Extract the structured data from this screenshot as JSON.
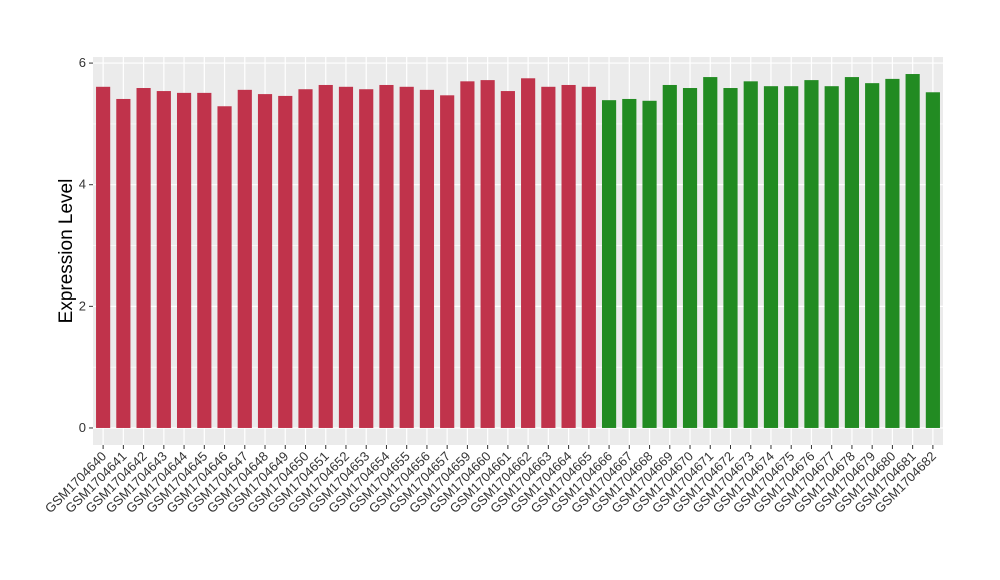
{
  "chart_data": {
    "type": "bar",
    "y_label": "Expression Level",
    "categories": [
      "GSM1704640",
      "GSM1704641",
      "GSM1704642",
      "GSM1704643",
      "GSM1704644",
      "GSM1704645",
      "GSM1704646",
      "GSM1704647",
      "GSM1704648",
      "GSM1704649",
      "GSM1704650",
      "GSM1704651",
      "GSM1704652",
      "GSM1704653",
      "GSM1704654",
      "GSM1704655",
      "GSM1704656",
      "GSM1704657",
      "GSM1704659",
      "GSM1704660",
      "GSM1704661",
      "GSM1704662",
      "GSM1704663",
      "GSM1704664",
      "GSM1704665",
      "GSM1704666",
      "GSM1704667",
      "GSM1704668",
      "GSM1704669",
      "GSM1704670",
      "GSM1704671",
      "GSM1704672",
      "GSM1704673",
      "GSM1704674",
      "GSM1704675",
      "GSM1704676",
      "GSM1704677",
      "GSM1704678",
      "GSM1704679",
      "GSM1704680",
      "GSM1704681",
      "GSM1704682"
    ],
    "values": [
      5.61,
      5.41,
      5.59,
      5.54,
      5.51,
      5.51,
      5.29,
      5.56,
      5.49,
      5.46,
      5.57,
      5.64,
      5.61,
      5.57,
      5.64,
      5.61,
      5.56,
      5.47,
      5.7,
      5.72,
      5.54,
      5.75,
      5.61,
      5.64,
      5.61,
      5.39,
      5.41,
      5.38,
      5.64,
      5.59,
      5.77,
      5.59,
      5.7,
      5.62,
      5.62,
      5.72,
      5.62,
      5.77,
      5.67,
      5.74,
      5.82,
      5.52
    ],
    "colors": [
      "#c0334b",
      "#c0334b",
      "#c0334b",
      "#c0334b",
      "#c0334b",
      "#c0334b",
      "#c0334b",
      "#c0334b",
      "#c0334b",
      "#c0334b",
      "#c0334b",
      "#c0334b",
      "#c0334b",
      "#c0334b",
      "#c0334b",
      "#c0334b",
      "#c0334b",
      "#c0334b",
      "#c0334b",
      "#c0334b",
      "#c0334b",
      "#c0334b",
      "#c0334b",
      "#c0334b",
      "#c0334b",
      "#228b22",
      "#228b22",
      "#228b22",
      "#228b22",
      "#228b22",
      "#228b22",
      "#228b22",
      "#228b22",
      "#228b22",
      "#228b22",
      "#228b22",
      "#228b22",
      "#228b22",
      "#228b22",
      "#228b22",
      "#228b22",
      "#228b22"
    ],
    "ylim": [
      -0.28,
      6.1
    ],
    "yticks": [
      0,
      2,
      4,
      6
    ],
    "grid": true
  }
}
